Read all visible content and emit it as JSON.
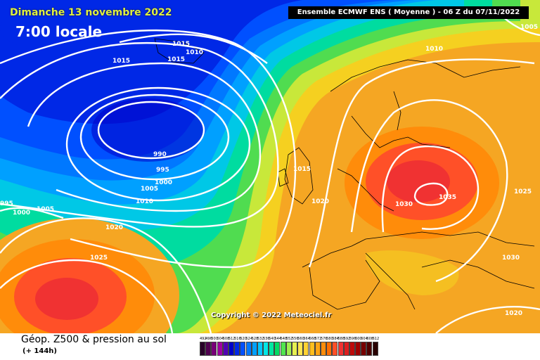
{
  "header": {
    "date": "Dimanche 13 novembre 2022",
    "time": "7:00 locale",
    "model": "Ensemble ECMWF ENS  ( Moyenne )  - 06 Z du 07/11/2022"
  },
  "copyright": "Copyright © 2022 Meteociel.fr",
  "footer": {
    "field": "Géop. Z500 & pression au sol",
    "lead": "(+ 144h)"
  },
  "scale": {
    "values": [
      "492",
      "496",
      "500",
      "504",
      "508",
      "512",
      "516",
      "520",
      "524",
      "528",
      "532",
      "536",
      "540",
      "544",
      "548",
      "552",
      "556",
      "560",
      "564",
      "568",
      "572",
      "576",
      "580",
      "584",
      "588",
      "592",
      "596",
      "600",
      "604",
      "608",
      "612"
    ],
    "colors": [
      "#280028",
      "#500050",
      "#780078",
      "#a000a0",
      "#5000b4",
      "#0000c8",
      "#0028e6",
      "#0050ff",
      "#0078ff",
      "#00a0ff",
      "#00c8ff",
      "#00e6e6",
      "#00e6a0",
      "#00dc64",
      "#50e650",
      "#a0f050",
      "#e6f050",
      "#ffe650",
      "#ffd232",
      "#ffbe1e",
      "#ffa514",
      "#ff8c0a",
      "#ff6e00",
      "#ff5028",
      "#f03232",
      "#dc1e1e",
      "#be0a0a",
      "#a00000",
      "#780000",
      "#500000",
      "#280000"
    ]
  },
  "isobar_labels": [
    {
      "text": "1015",
      "name": "isobar-label-1015-iceland"
    },
    {
      "text": "1010",
      "name": "isobar-label-1010-iceland"
    },
    {
      "text": "1015",
      "name": "isobar-label-1015-iceland-b"
    },
    {
      "text": "1015",
      "name": "isobar-label-1015-greenland"
    },
    {
      "text": "1010",
      "name": "isobar-label-1010-norway"
    },
    {
      "text": "1005",
      "name": "isobar-label-1005-ne"
    },
    {
      "text": "990",
      "name": "isobar-label-990"
    },
    {
      "text": "995",
      "name": "isobar-label-995"
    },
    {
      "text": "1000",
      "name": "isobar-label-1000"
    },
    {
      "text": "1005",
      "name": "isobar-label-1005"
    },
    {
      "text": "1010",
      "name": "isobar-label-1010"
    },
    {
      "text": "1015",
      "name": "isobar-label-1015-uk"
    },
    {
      "text": "1020",
      "name": "isobar-label-1020"
    },
    {
      "text": "1030",
      "name": "isobar-label-1030"
    },
    {
      "text": "1035",
      "name": "isobar-label-1035"
    },
    {
      "text": "1025",
      "name": "isobar-label-1025-east"
    },
    {
      "text": "1030",
      "name": "isobar-label-1030-east"
    },
    {
      "text": "1020",
      "name": "isobar-label-1020-se"
    },
    {
      "text": "1020",
      "name": "isobar-label-1020-atlantic"
    },
    {
      "text": "1025",
      "name": "isobar-label-1025-atlantic"
    },
    {
      "text": "1000",
      "name": "isobar-label-1000-west"
    },
    {
      "text": "1005",
      "name": "isobar-label-1005-west"
    },
    {
      "text": "995",
      "name": "isobar-label-995-west"
    }
  ]
}
